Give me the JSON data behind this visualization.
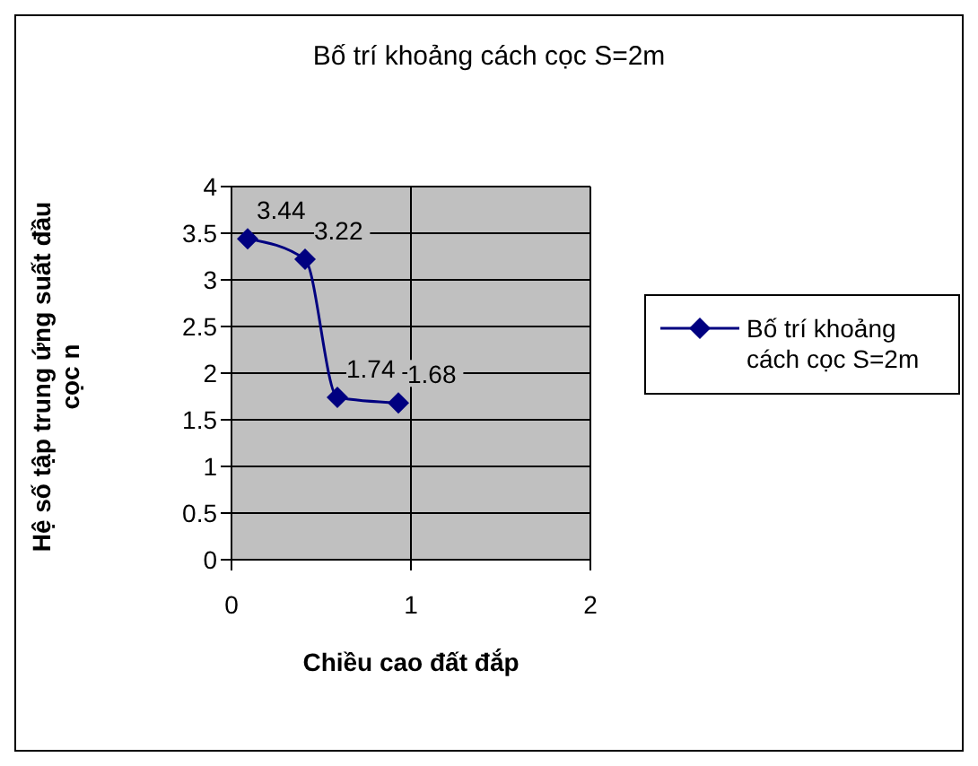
{
  "chart_data": {
    "type": "line",
    "title": "Bố trí khoảng cách cọc S=2m",
    "xlabel": "Chiều cao đất đắp",
    "ylabel": "Hệ số tập trung ứng suất đầu cọc n",
    "x": [
      0.09,
      0.41,
      0.59,
      0.93
    ],
    "series": [
      {
        "name": "Bố trí khoảng cách cọc S=2m",
        "color": "#000080",
        "values": [
          3.44,
          3.22,
          1.74,
          1.68
        ]
      }
    ],
    "xlim": [
      0,
      2
    ],
    "xticks": [
      0,
      1,
      2
    ],
    "ylim": [
      0,
      4
    ],
    "yticks": [
      0,
      0.5,
      1,
      1.5,
      2,
      2.5,
      3,
      3.5,
      4
    ],
    "grid": true,
    "legend": "right",
    "marker": "diamond",
    "line_style": "solid",
    "data_labels": true
  }
}
